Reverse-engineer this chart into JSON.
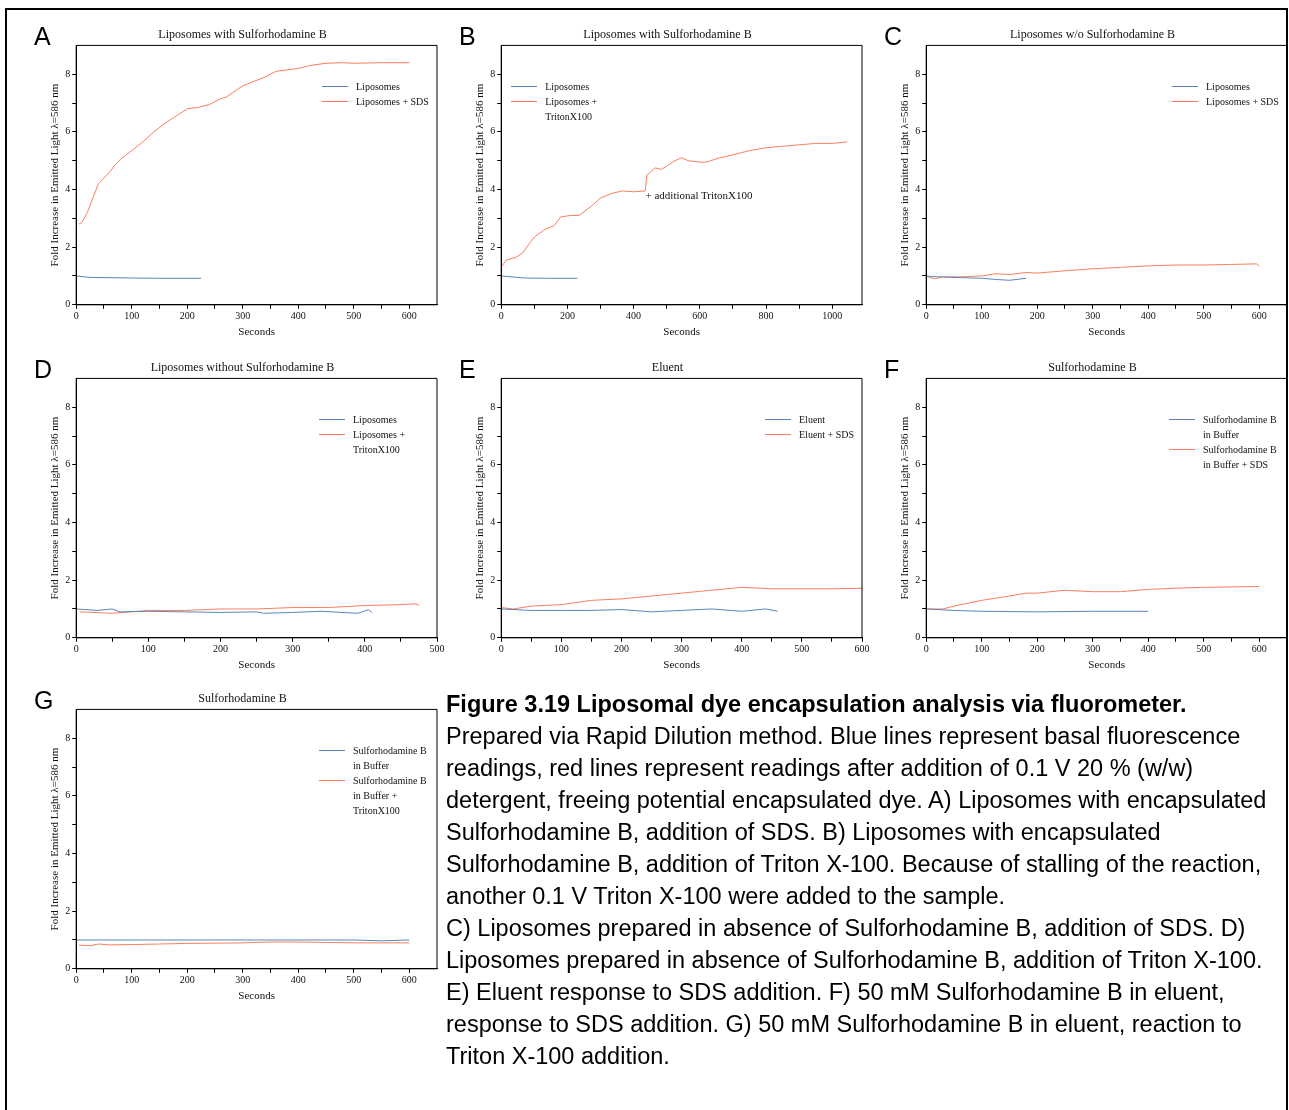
{
  "chart_data": [
    {
      "type": "line",
      "title": "Liposomes with Sulforhodamine B",
      "xlabel": "Seconds",
      "ylabel": "Fold Increase in Emitted Light λ=586 nm",
      "annotations": [
        "A"
      ],
      "legend": "top right",
      "xlim": [
        0,
        650
      ],
      "xticks": [
        0,
        {
          "value": 50,
          "label": null
        },
        100,
        {
          "value": 150,
          "label": null
        },
        200,
        {
          "value": 250,
          "label": null
        },
        300,
        {
          "value": 350,
          "label": null
        },
        400,
        {
          "value": 450,
          "label": null
        },
        500,
        {
          "value": 550,
          "label": null
        },
        600
      ],
      "ylim": [
        0,
        9
      ],
      "yticks": [
        0,
        {
          "value": 1,
          "label": null
        },
        2,
        {
          "value": 3,
          "label": null
        },
        4,
        {
          "value": 5,
          "label": null
        },
        6,
        {
          "value": 7,
          "label": null
        },
        8
      ],
      "series": [
        {
          "name": "Liposomes",
          "color": "#5a86bd",
          "x": [
            0,
            25,
            100,
            150,
            225
          ],
          "values": [
            1.0,
            0.95,
            0.93,
            0.92,
            0.92
          ]
        },
        {
          "name": "Liposomes + SDS",
          "color": "#fa7f61",
          "x": [
            5,
            10,
            20,
            30,
            40,
            50,
            60,
            70,
            80,
            100,
            120,
            140,
            160,
            180,
            200,
            220,
            240,
            260,
            270,
            300,
            320,
            340,
            360,
            380,
            400,
            420,
            450,
            480,
            500,
            550,
            600
          ],
          "values": [
            2.8,
            2.85,
            3.2,
            3.7,
            4.2,
            4.4,
            4.6,
            4.85,
            5.05,
            5.35,
            5.65,
            6.0,
            6.3,
            6.55,
            6.8,
            6.85,
            6.95,
            7.15,
            7.2,
            7.6,
            7.75,
            7.9,
            8.1,
            8.15,
            8.2,
            8.3,
            8.38,
            8.4,
            8.38,
            8.4,
            8.4
          ]
        }
      ]
    },
    {
      "type": "line",
      "title": "Liposomes with Sulforhodamine B",
      "xlabel": "Seconds",
      "ylabel": "Fold Increase in Emitted Light λ=586 nm",
      "annotations": [
        "B",
        "+ additional TritonX100"
      ],
      "legend": "top left",
      "xlim": [
        0,
        1090
      ],
      "xticks": [
        0,
        {
          "value": 100,
          "label": null
        },
        200,
        {
          "value": 300,
          "label": null
        },
        400,
        {
          "value": 500,
          "label": null
        },
        600,
        {
          "value": 700,
          "label": null
        },
        800,
        {
          "value": 900,
          "label": null
        },
        1000
      ],
      "ylim": [
        0,
        9
      ],
      "yticks": [
        0,
        {
          "value": 1,
          "label": null
        },
        2,
        {
          "value": 3,
          "label": null
        },
        4,
        {
          "value": 5,
          "label": null
        },
        6,
        {
          "value": 7,
          "label": null
        },
        8
      ],
      "series": [
        {
          "name": "Liposomes",
          "color": "#5a86bd",
          "x": [
            0,
            70,
            150,
            230
          ],
          "values": [
            1.0,
            0.93,
            0.92,
            0.92
          ]
        },
        {
          "name": "Liposomes + TritonX100",
          "color": "#fa7f61",
          "x": [
            0,
            15,
            45,
            65,
            80,
            100,
            130,
            160,
            180,
            210,
            235,
            270,
            300,
            330,
            365,
            400,
            435,
            440,
            465,
            485,
            505,
            525,
            545,
            565,
            600,
            620,
            660,
            700,
            750,
            800,
            850,
            900,
            950,
            1000,
            1045
          ],
          "values": [
            1.3,
            1.55,
            1.65,
            1.8,
            2.05,
            2.35,
            2.6,
            2.75,
            3.05,
            3.1,
            3.1,
            3.4,
            3.7,
            3.85,
            3.95,
            3.92,
            3.95,
            4.5,
            4.75,
            4.7,
            4.85,
            5.0,
            5.1,
            5.0,
            4.95,
            4.95,
            5.1,
            5.2,
            5.35,
            5.45,
            5.5,
            5.55,
            5.6,
            5.6,
            5.65
          ]
        }
      ]
    },
    {
      "type": "line",
      "title": "Liposomes w/o Sulforhodamine B",
      "xlabel": "Seconds",
      "ylabel": "Fold Increase in Emitted Light λ=586 nm",
      "annotations": [
        "C"
      ],
      "legend": "top right",
      "xlim": [
        0,
        650
      ],
      "xticks": [
        0,
        {
          "value": 50,
          "label": null
        },
        100,
        {
          "value": 150,
          "label": null
        },
        200,
        {
          "value": 250,
          "label": null
        },
        300,
        {
          "value": 350,
          "label": null
        },
        400,
        {
          "value": 450,
          "label": null
        },
        500,
        {
          "value": 550,
          "label": null
        },
        600
      ],
      "ylim": [
        0,
        9
      ],
      "yticks": [
        0,
        {
          "value": 1,
          "label": null
        },
        2,
        {
          "value": 3,
          "label": null
        },
        4,
        {
          "value": 5,
          "label": null
        },
        6,
        {
          "value": 7,
          "label": null
        },
        8
      ],
      "series": [
        {
          "name": "Liposomes",
          "color": "#5a86bd",
          "x": [
            0,
            10,
            50,
            100,
            125,
            150,
            180
          ],
          "values": [
            1.0,
            0.98,
            0.95,
            0.92,
            0.88,
            0.85,
            0.92
          ]
        },
        {
          "name": "Liposomes + SDS",
          "color": "#fa7f61",
          "x": [
            0,
            15,
            30,
            60,
            100,
            125,
            150,
            180,
            200,
            250,
            300,
            350,
            400,
            450,
            500,
            550,
            595,
            600
          ],
          "values": [
            1.0,
            0.9,
            0.97,
            0.97,
            1.0,
            1.08,
            1.05,
            1.12,
            1.1,
            1.18,
            1.25,
            1.3,
            1.35,
            1.38,
            1.38,
            1.4,
            1.42,
            1.35
          ]
        }
      ]
    },
    {
      "type": "line",
      "title": "Liposomes without Sulforhodamine B",
      "xlabel": "Seconds",
      "ylabel": "Fold Increase in Emitted Light λ=586 nm",
      "annotations": [
        "D"
      ],
      "legend": "top right",
      "xlim": [
        0,
        500
      ],
      "xticks": [
        0,
        {
          "value": 50,
          "label": null
        },
        100,
        {
          "value": 150,
          "label": null
        },
        200,
        {
          "value": 250,
          "label": null
        },
        300,
        {
          "value": 350,
          "label": null
        },
        400,
        {
          "value": 450,
          "label": null
        },
        500
      ],
      "ylim": [
        0,
        9
      ],
      "yticks": [
        0,
        {
          "value": 1,
          "label": null
        },
        2,
        {
          "value": 3,
          "label": null
        },
        4,
        {
          "value": 5,
          "label": null
        },
        6,
        {
          "value": 7,
          "label": null
        },
        8
      ],
      "series": [
        {
          "name": "Liposomes",
          "color": "#5a86bd",
          "x": [
            0,
            30,
            50,
            60,
            100,
            150,
            200,
            250,
            260,
            300,
            340,
            390,
            405,
            410
          ],
          "values": [
            1.0,
            0.95,
            1.0,
            0.9,
            0.92,
            0.9,
            0.88,
            0.9,
            0.85,
            0.88,
            0.92,
            0.85,
            0.97,
            0.88
          ]
        },
        {
          "name": "Liposomes + TritonX100",
          "color": "#fa7f61",
          "x": [
            5,
            50,
            100,
            150,
            200,
            250,
            300,
            350,
            400,
            450,
            470,
            475
          ],
          "values": [
            0.9,
            0.85,
            0.95,
            0.95,
            1.0,
            1.0,
            1.05,
            1.05,
            1.12,
            1.15,
            1.18,
            1.12
          ]
        }
      ]
    },
    {
      "type": "line",
      "title": "Eluent",
      "xlabel": "Seconds",
      "ylabel": "Fold Increase in Emitted Light λ=586 nm",
      "annotations": [
        "E"
      ],
      "legend": "top right",
      "xlim": [
        0,
        600
      ],
      "xticks": [
        0,
        {
          "value": 50,
          "label": null
        },
        100,
        {
          "value": 150,
          "label": null
        },
        200,
        {
          "value": 250,
          "label": null
        },
        300,
        {
          "value": 350,
          "label": null
        },
        400,
        {
          "value": 450,
          "label": null
        },
        500,
        {
          "value": 550,
          "label": null
        },
        600
      ],
      "ylim": [
        0,
        9
      ],
      "yticks": [
        0,
        {
          "value": 1,
          "label": null
        },
        2,
        {
          "value": 3,
          "label": null
        },
        4,
        {
          "value": 5,
          "label": null
        },
        6,
        {
          "value": 7,
          "label": null
        },
        8
      ],
      "series": [
        {
          "name": "Eluent",
          "color": "#5a86bd",
          "x": [
            0,
            50,
            100,
            150,
            200,
            250,
            300,
            350,
            400,
            440,
            460
          ],
          "values": [
            1.0,
            0.95,
            0.95,
            0.95,
            0.98,
            0.9,
            0.95,
            1.0,
            0.92,
            1.0,
            0.92
          ]
        },
        {
          "name": "Eluent + SDS",
          "color": "#fa7f61",
          "x": [
            0,
            20,
            50,
            100,
            150,
            200,
            250,
            300,
            350,
            400,
            450,
            500,
            550,
            600
          ],
          "values": [
            1.05,
            1.0,
            1.1,
            1.15,
            1.3,
            1.35,
            1.45,
            1.55,
            1.65,
            1.75,
            1.7,
            1.7,
            1.7,
            1.72
          ]
        }
      ]
    },
    {
      "type": "line",
      "title": "Sulforhodamine B",
      "xlabel": "Seconds",
      "ylabel": "Fold Increase in Emitted Light λ=586 nm",
      "annotations": [
        "F"
      ],
      "legend": "top right",
      "xlim": [
        0,
        650
      ],
      "xticks": [
        0,
        {
          "value": 50,
          "label": null
        },
        100,
        {
          "value": 150,
          "label": null
        },
        200,
        {
          "value": 250,
          "label": null
        },
        300,
        {
          "value": 350,
          "label": null
        },
        400,
        {
          "value": 450,
          "label": null
        },
        500,
        {
          "value": 550,
          "label": null
        },
        600
      ],
      "ylim": [
        0,
        9
      ],
      "yticks": [
        0,
        {
          "value": 1,
          "label": null
        },
        2,
        {
          "value": 3,
          "label": null
        },
        4,
        {
          "value": 5,
          "label": null
        },
        6,
        {
          "value": 7,
          "label": null
        },
        8
      ],
      "series": [
        {
          "name": "Sulforhodamine B in Buffer",
          "color": "#5a86bd",
          "x": [
            0,
            50,
            100,
            200,
            300,
            400
          ],
          "values": [
            1.0,
            0.95,
            0.92,
            0.9,
            0.92,
            0.92
          ]
        },
        {
          "name": "Sulforhodamine B in Buffer + SDS",
          "color": "#fa7f61",
          "x": [
            0,
            30,
            50,
            100,
            150,
            180,
            200,
            250,
            300,
            350,
            400,
            450,
            500,
            600
          ],
          "values": [
            1.0,
            1.0,
            1.1,
            1.3,
            1.45,
            1.55,
            1.55,
            1.65,
            1.6,
            1.6,
            1.68,
            1.72,
            1.75,
            1.78
          ]
        }
      ]
    },
    {
      "type": "line",
      "title": "Sulforhodamine B",
      "xlabel": "Seconds",
      "ylabel": "Fold Increase in Emitted Light λ=586 nm",
      "annotations": [
        "G"
      ],
      "legend": "top right",
      "xlim": [
        0,
        650
      ],
      "xticks": [
        0,
        {
          "value": 50,
          "label": null
        },
        100,
        {
          "value": 150,
          "label": null
        },
        200,
        {
          "value": 250,
          "label": null
        },
        300,
        {
          "value": 350,
          "label": null
        },
        400,
        {
          "value": 450,
          "label": null
        },
        500,
        {
          "value": 550,
          "label": null
        },
        600
      ],
      "ylim": [
        0,
        9
      ],
      "yticks": [
        0,
        {
          "value": 1,
          "label": null
        },
        2,
        {
          "value": 3,
          "label": null
        },
        4,
        {
          "value": 5,
          "label": null
        },
        6,
        {
          "value": 7,
          "label": null
        },
        8
      ],
      "series": [
        {
          "name": "Sulforhodamine B in Buffer",
          "color": "#5a86bd",
          "x": [
            0,
            100,
            200,
            300,
            400,
            500,
            550,
            600
          ],
          "values": [
            1.0,
            1.0,
            1.0,
            1.0,
            1.0,
            1.0,
            0.97,
            1.0
          ]
        },
        {
          "name": "Sulforhodamine B in Buffer + TritonX100",
          "color": "#fa7f61",
          "x": [
            5,
            25,
            40,
            60,
            100,
            150,
            200,
            300,
            350,
            400,
            500,
            600
          ],
          "values": [
            0.82,
            0.8,
            0.86,
            0.83,
            0.84,
            0.86,
            0.88,
            0.9,
            0.93,
            0.93,
            0.9,
            0.9
          ]
        }
      ]
    },
    {
      "type": "other",
      "title": "Figure 3.19 Liposomal dye encapsulation analysis via fluorometer.",
      "annotations": [
        "Prepared via Rapid Dilution method. Blue lines represent basal fluorescence readings, red lines represent readings after addition of 0.1 V 20 % (w/w) detergent, freeing potential encapsulated dye. A) Liposomes with encapsulated Sulforhodamine B, addition of SDS. B) Liposomes with encapsulated Sulforhodamine B, addition of Triton X-100. Because of stalling of the reaction, another 0.1 V Triton X-100 were added to the sample.",
        "C) Liposomes prepared in absence of Sulforhodamine B, addition of SDS. D) Liposomes prepared in absence of Sulforhodamine B, addition of Triton X-100. E) Eluent response to SDS addition. F) 50 mM Sulforhodamine B in eluent, response to SDS addition. G) 50 mM Sulforhodamine B in eluent, reaction to Triton X-100 addition."
      ]
    }
  ]
}
